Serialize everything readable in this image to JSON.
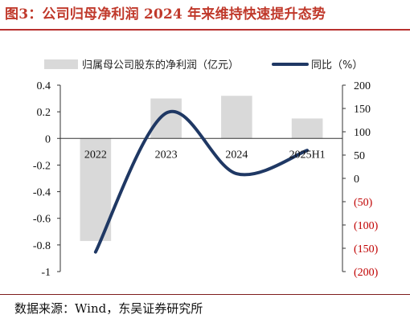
{
  "title": "图3：公司归母净利润 2024 年来维持快速提升态势",
  "source": "数据来源：Wind，东吴证券研究所",
  "chart_data": {
    "type": "bar",
    "categories": [
      "2022",
      "2023",
      "2024",
      "2025H1"
    ],
    "series": [
      {
        "name": "归属母公司股东的净利润（亿元）",
        "type": "bar",
        "axis": "left",
        "values": [
          -0.77,
          0.3,
          0.32,
          0.15
        ],
        "color": "#d9d9d9"
      },
      {
        "name": "同比（%）",
        "type": "line",
        "axis": "right",
        "values": [
          -158,
          140,
          10,
          60
        ],
        "color": "#1f3864"
      }
    ],
    "ylim": [
      -1,
      0.4
    ],
    "yticks": [
      "0.4",
      "0.2",
      "0",
      "-0.2",
      "-0.4",
      "-0.6",
      "-0.8",
      "-1"
    ],
    "y2lim": [
      -200,
      200
    ],
    "y2ticks": [
      "200",
      "150",
      "100",
      "50",
      "0",
      "(50)",
      "(100)",
      "(150)",
      "(200)"
    ],
    "y2_negative_color": "#c00000",
    "legend_position": "top",
    "grid": false
  }
}
